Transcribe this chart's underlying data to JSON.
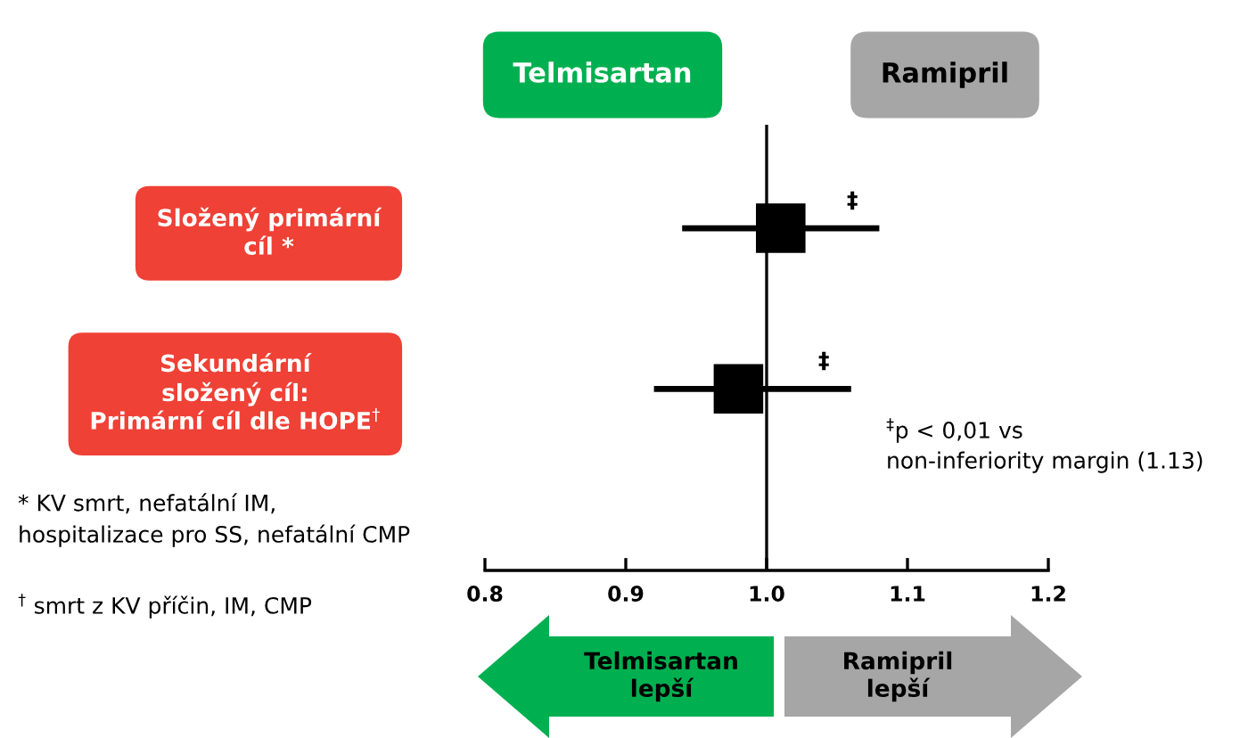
{
  "chart_data": {
    "type": "scatter",
    "orientation": "horizontal",
    "categories": [
      "Složený primární\ncíl *",
      "Sekundární\nsložený cíl:\nPrimární cíl dle HOPE$^{†}$"
    ],
    "values": [
      1.01,
      0.98
    ],
    "errors": [
      [
        0.94,
        1.08
      ],
      [
        0.92,
        1.06
      ]
    ],
    "color": "#000000",
    "marker": "square",
    "xlim": [
      0.8,
      1.2
    ],
    "xticks": [
      0.8,
      0.9,
      {
        "value": 1.0,
        "label": "1.0"
      },
      1.1,
      1.2
    ],
    "ref_lines": [
      {
        "axis": "x",
        "value": 1.0,
        "color": "#000000"
      }
    ],
    "grid": false,
    "annotations": [
      "‡",
      "‡",
      "Telmisartan",
      "Ramipril",
      "$^{‡}$p < 0,01 vs\nnon-inferiority margin (1.13)",
      "* KV smrt, nefatální IM,\nhospitalizace pro SS, nefatální CMP",
      "$^{†}$ smrt z KV příčin, IM, CMP",
      "Telmisartan\nlepší",
      "Ramipril\nlepší"
    ]
  }
}
